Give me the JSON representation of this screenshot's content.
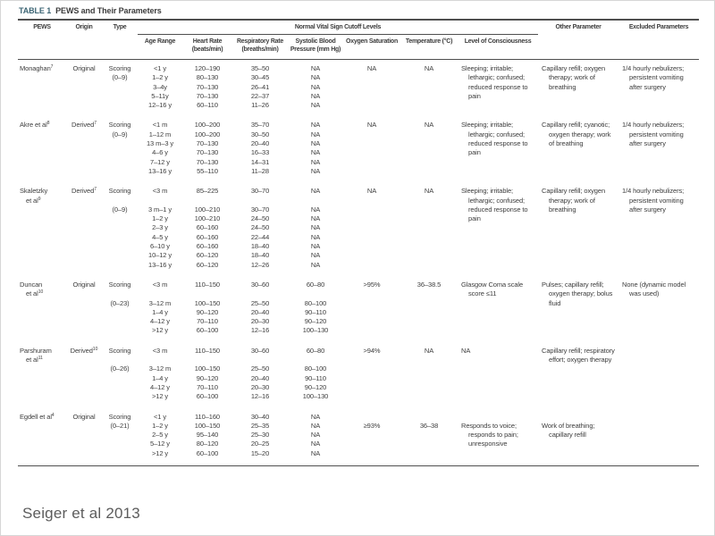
{
  "page": {
    "caption": "Seiger et al 2013"
  },
  "table": {
    "label": "TABLE 1",
    "title": "PEWS and Their Parameters",
    "header": {
      "pews": "PEWS",
      "origin": "Origin",
      "type": "Type",
      "spanner": "Normal Vital Sign Cutoff Levels",
      "age_range": "Age Range",
      "heart_rate": "Heart Rate (beats/min)",
      "resp_rate": "Respiratory Rate (breaths/min)",
      "systolic_bp": "Systolic Blood Pressure (mm Hg)",
      "oxygen_sat": "Oxygen Saturation",
      "temperature": "Temperature (°C)",
      "consciousness": "Level of Consciousness",
      "other_param": "Other Parameter",
      "excluded": "Excluded Parameters"
    },
    "rows": [
      {
        "pews": [
          "Monaghan^7"
        ],
        "origin": [
          "Original"
        ],
        "type": [
          "Scoring",
          "(0–9)"
        ],
        "age_range": [
          "<1 y",
          "1–2 y",
          "3–4y",
          "5–11y",
          "12–16 y"
        ],
        "heart_rate": [
          "120–190",
          "80–130",
          "70–130",
          "70–130",
          "60–110"
        ],
        "resp_rate": [
          "35–50",
          "30–45",
          "26–41",
          "22–37",
          "11–26"
        ],
        "systolic_bp": [
          "NA",
          "NA",
          "NA",
          "NA",
          "NA"
        ],
        "oxygen_sat": [
          "NA"
        ],
        "temperature": [
          "NA"
        ],
        "consciousness": "Sleeping; irritable; lethargic; confused; reduced response to pain",
        "other_param": "Capillary refill; oxygen therapy; work of breathing",
        "excluded": "1/4 hourly nebulizers; persistent vomiting after surgery"
      },
      {
        "pews": [
          "Akre et al^8"
        ],
        "origin": [
          "Derived^7"
        ],
        "type": [
          "Scoring",
          "(0–9)"
        ],
        "age_range": [
          "<1 m",
          "1–12 m",
          "13 m–3 y",
          "4–6 y",
          "7–12 y",
          "13–16 y"
        ],
        "heart_rate": [
          "100–200",
          "100–200",
          "70–130",
          "70–130",
          "70–130",
          "55–110"
        ],
        "resp_rate": [
          "35–70",
          "30–50",
          "20–40",
          "16–33",
          "14–31",
          "11–28"
        ],
        "systolic_bp": [
          "NA",
          "NA",
          "NA",
          "NA",
          "NA",
          "NA"
        ],
        "oxygen_sat": [
          "NA"
        ],
        "temperature": [
          "NA"
        ],
        "consciousness": "Sleeping; irritable; lethargic; confused; reduced response to pain",
        "other_param": "Capillary refill; cyanotic; oxygen therapy; work of breathing",
        "excluded": "1/4 hourly nebulizers; persistent vomiting after surgery"
      },
      {
        "pews": [
          "Skaletzky",
          "et al^9"
        ],
        "origin": [
          "Derived^7"
        ],
        "type": [
          "Scoring",
          "",
          "(0–9)"
        ],
        "age_range": [
          "<3 m",
          "",
          "3 m–1 y",
          "1–2 y",
          "2–3 y",
          "4–5 y",
          "6–10 y",
          "10–12 y",
          "13–16 y"
        ],
        "heart_rate": [
          "85–225",
          "",
          "100–210",
          "100–210",
          "60–160",
          "60–160",
          "60–160",
          "60–120",
          "60–120"
        ],
        "resp_rate": [
          "30–70",
          "",
          "30–70",
          "24–50",
          "24–50",
          "22–44",
          "18–40",
          "18–40",
          "12–26"
        ],
        "systolic_bp": [
          "NA",
          "",
          "NA",
          "NA",
          "NA",
          "NA",
          "NA",
          "NA",
          "NA"
        ],
        "oxygen_sat": [
          "NA"
        ],
        "temperature": [
          "NA"
        ],
        "consciousness": "Sleeping; irritable; lethargic; confused; reduced response to pain",
        "other_param": "Capillary refill; oxygen therapy; work of breathing",
        "excluded": "1/4 hourly nebulizers; persistent vomiting after surgery"
      },
      {
        "pews": [
          "Duncan",
          "et al^10"
        ],
        "origin": [
          "Original"
        ],
        "type": [
          "Scoring",
          "",
          "(0–23)"
        ],
        "age_range": [
          "<3 m",
          "",
          "3–12 m",
          "1–4 y",
          "4–12 y",
          ">12 y"
        ],
        "heart_rate": [
          "110–150",
          "",
          "100–150",
          "90–120",
          "70–110",
          "60–100"
        ],
        "resp_rate": [
          "30–60",
          "",
          "25–50",
          "20–40",
          "20–30",
          "12–16"
        ],
        "systolic_bp": [
          "60–80",
          "",
          "80–100",
          "90–110",
          "90–120",
          "100–130"
        ],
        "oxygen_sat": [
          ">95%"
        ],
        "temperature": [
          "36–38.5"
        ],
        "consciousness": "Glasgow Coma scale score ≤11",
        "other_param": "Pulses; capillary refill; oxygen therapy; bolus fluid",
        "excluded": "None (dynamic model was used)"
      },
      {
        "pews": [
          "Parshuram",
          "et al^11"
        ],
        "origin": [
          "Derived^10"
        ],
        "type": [
          "Scoring",
          "",
          "(0–26)"
        ],
        "age_range": [
          "<3 m",
          "",
          "3–12 m",
          "1–4 y",
          "4–12 y",
          ">12 y"
        ],
        "heart_rate": [
          "110–150",
          "",
          "100–150",
          "90–120",
          "70–110",
          "60–100"
        ],
        "resp_rate": [
          "30–60",
          "",
          "25–50",
          "20–40",
          "20–30",
          "12–16"
        ],
        "systolic_bp": [
          "60–80",
          "",
          "80–100",
          "90–110",
          "90–120",
          "100–130"
        ],
        "oxygen_sat": [
          ">94%"
        ],
        "temperature": [
          "NA"
        ],
        "consciousness": "NA",
        "other_param": "Capillary refill; respiratory effort; oxygen therapy",
        "excluded": ""
      },
      {
        "pews": [
          "Egdell et al^4"
        ],
        "origin": [
          "Original"
        ],
        "type": [
          "Scoring",
          "(0–21)"
        ],
        "age_range": [
          "<1 y",
          "1–2 y",
          "2–5 y",
          "5–12 y",
          ">12 y"
        ],
        "heart_rate": [
          "110–160",
          "100–150",
          "95–140",
          "80–120",
          "60–100"
        ],
        "resp_rate": [
          "30–40",
          "25–35",
          "25–30",
          "20–25",
          "15–20"
        ],
        "systolic_bp": [
          "NA",
          "NA",
          "NA",
          "NA",
          "NA"
        ],
        "oxygen_sat": [
          "",
          "≥93%"
        ],
        "temperature": [
          "",
          "36–38"
        ],
        "consciousness": {
          "text": "Responds to voice; responds to pain; unresponsive",
          "pad": 1
        },
        "other_param": {
          "text": "Work of breathing; capillary refill",
          "pad": 1
        },
        "excluded": ""
      }
    ]
  }
}
